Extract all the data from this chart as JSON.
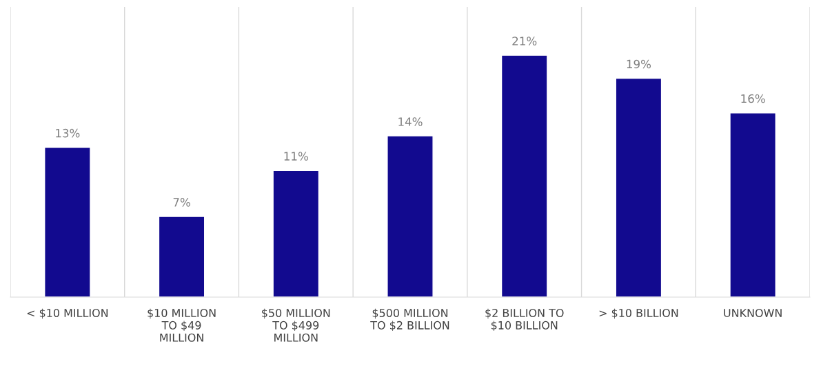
{
  "chart_data": {
    "type": "bar",
    "categories": [
      "< $10 MILLION",
      "$10 MILLION\nTO $49\nMILLION",
      "$50 MILLION\nTO $499\nMILLION",
      "$500 MILLION\nTO $2 BILLION",
      "$2 BILLION TO\n$10 BILLION",
      "> $10 BILLION",
      "UNKNOWN"
    ],
    "values": [
      13,
      7,
      11,
      14,
      21,
      19,
      16
    ],
    "value_labels": [
      "13%",
      "7%",
      "11%",
      "14%",
      "21%",
      "19%",
      "16%"
    ],
    "color": "#120a8f",
    "grid": "x"
  }
}
